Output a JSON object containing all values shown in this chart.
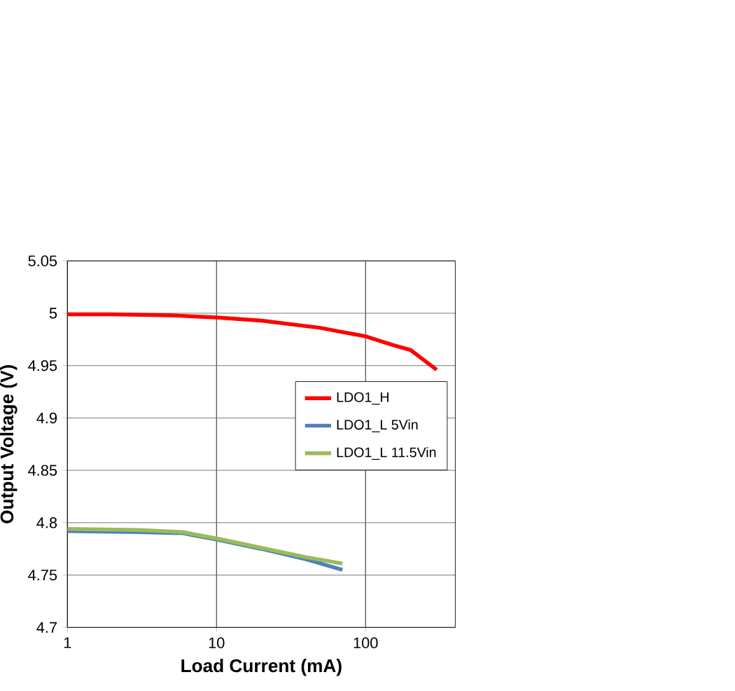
{
  "chart_data": {
    "type": "line",
    "xlabel": "Load Current (mA)",
    "ylabel": "Output Voltage (V)",
    "log": "x",
    "grid": true,
    "legend": "right",
    "marker": "none",
    "xlim": [
      1,
      400
    ],
    "xticks": [
      1,
      10,
      100
    ],
    "ylim": [
      4.7,
      5.05
    ],
    "yticks": [
      4.7,
      4.75,
      4.8,
      4.85,
      4.9,
      4.95,
      5,
      5.05
    ],
    "series": [
      {
        "name": "LDO1_H",
        "color": "#ff0000",
        "x": [
          1,
          2,
          5,
          7,
          10,
          20,
          50,
          70,
          100,
          150,
          200,
          300
        ],
        "values": [
          4.999,
          4.999,
          4.998,
          4.997,
          4.996,
          4.993,
          4.986,
          4.982,
          4.978,
          4.97,
          4.965,
          4.946
        ]
      },
      {
        "name": "LDO1_L 5Vin",
        "color": "#4f81bd",
        "x": [
          1,
          3,
          6,
          7,
          10,
          20,
          40,
          70
        ],
        "values": [
          4.792,
          4.791,
          4.79,
          4.788,
          4.784,
          4.775,
          4.765,
          4.755
        ]
      },
      {
        "name": "LDO1_L 11.5Vin",
        "color": "#9bbb59",
        "x": [
          1,
          3,
          6,
          7,
          10,
          20,
          40,
          70
        ],
        "values": [
          4.794,
          4.793,
          4.791,
          4.789,
          4.785,
          4.776,
          4.767,
          4.761
        ]
      }
    ]
  }
}
